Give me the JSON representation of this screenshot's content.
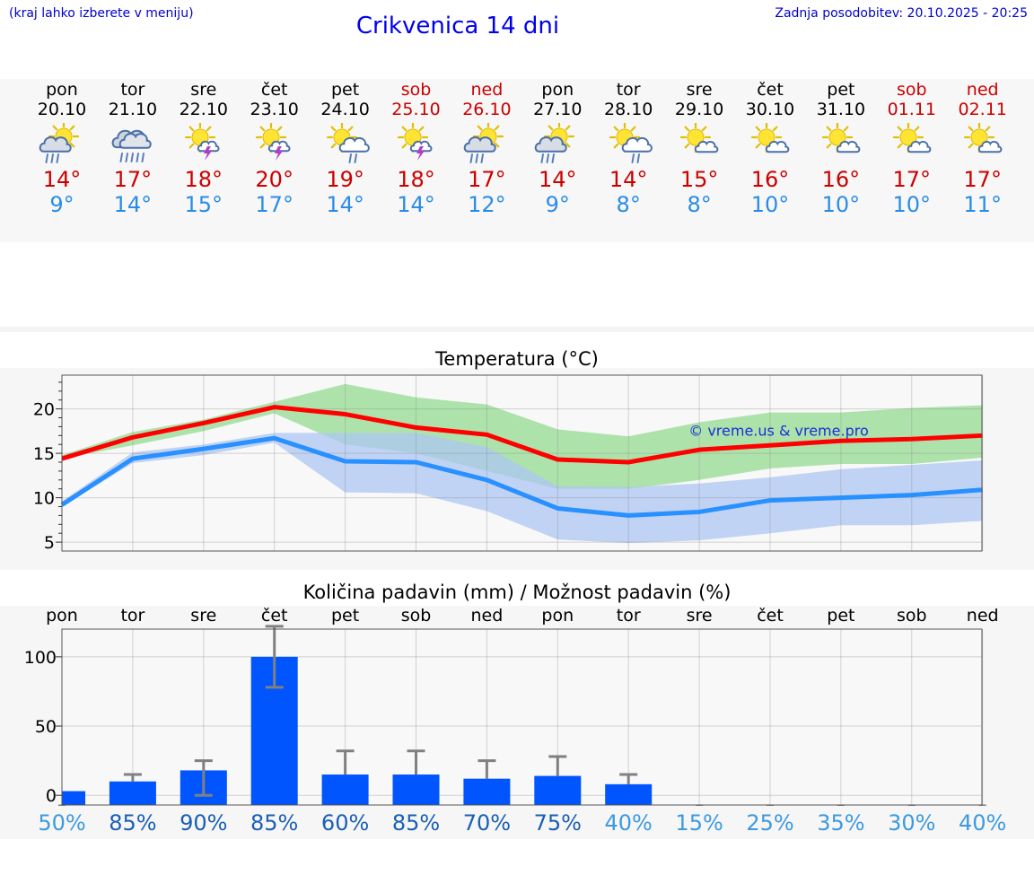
{
  "header": {
    "hint": "(kraj lahko izberete v meniju)",
    "title": "Crikvenica 14 dni",
    "updated": "Zadnja posodobitev: 20.10.2025 - 20:25"
  },
  "days": [
    {
      "name": "pon",
      "date": "20.10",
      "weekend": false,
      "icon": "sun-cloud-rain-icon",
      "tmax": "14°",
      "tmin": "9°"
    },
    {
      "name": "tor",
      "date": "21.10",
      "weekend": false,
      "icon": "cloud-heavy-rain-icon",
      "tmax": "17°",
      "tmin": "14°"
    },
    {
      "name": "sre",
      "date": "22.10",
      "weekend": false,
      "icon": "sun-thunder-icon",
      "tmax": "18°",
      "tmin": "15°"
    },
    {
      "name": "čet",
      "date": "23.10",
      "weekend": false,
      "icon": "sun-thunder-icon",
      "tmax": "20°",
      "tmin": "17°"
    },
    {
      "name": "pet",
      "date": "24.10",
      "weekend": false,
      "icon": "sun-cloud-light-rain-icon",
      "tmax": "19°",
      "tmin": "14°"
    },
    {
      "name": "sob",
      "date": "25.10",
      "weekend": true,
      "icon": "sun-thunder-icon",
      "tmax": "18°",
      "tmin": "14°"
    },
    {
      "name": "ned",
      "date": "26.10",
      "weekend": true,
      "icon": "sun-cloud-rain-icon",
      "tmax": "17°",
      "tmin": "12°"
    },
    {
      "name": "pon",
      "date": "27.10",
      "weekend": false,
      "icon": "sun-cloud-rain-icon",
      "tmax": "14°",
      "tmin": "9°"
    },
    {
      "name": "tor",
      "date": "28.10",
      "weekend": false,
      "icon": "sun-cloud-light-rain-icon",
      "tmax": "14°",
      "tmin": "8°"
    },
    {
      "name": "sre",
      "date": "29.10",
      "weekend": false,
      "icon": "sun-small-cloud-icon",
      "tmax": "15°",
      "tmin": "8°"
    },
    {
      "name": "čet",
      "date": "30.10",
      "weekend": false,
      "icon": "sun-small-cloud-icon",
      "tmax": "16°",
      "tmin": "10°"
    },
    {
      "name": "pet",
      "date": "31.10",
      "weekend": false,
      "icon": "sun-small-cloud-icon",
      "tmax": "16°",
      "tmin": "10°"
    },
    {
      "name": "sob",
      "date": "01.11",
      "weekend": true,
      "icon": "sun-small-cloud-icon",
      "tmax": "17°",
      "tmin": "10°"
    },
    {
      "name": "ned",
      "date": "02.11",
      "weekend": true,
      "icon": "sun-small-cloud-icon",
      "tmax": "17°",
      "tmin": "11°"
    }
  ],
  "colors": {
    "max_line": "#ff0000",
    "max_band": "#a9e2a6",
    "min_line": "#2990ff",
    "min_band": "#aec7f3",
    "bar": "#0055ff",
    "error": "#808080",
    "weekend": "#cc0000",
    "tmin_text": "#2a8ce8"
  },
  "chart_data": [
    {
      "type": "line",
      "title": "Temperatura (°C)",
      "watermark": "© vreme.us & vreme.pro",
      "categories": [
        "20.10",
        "21.10",
        "22.10",
        "23.10",
        "24.10",
        "25.10",
        "26.10",
        "27.10",
        "28.10",
        "29.10",
        "30.10",
        "31.10",
        "01.11",
        "02.11"
      ],
      "ylim": [
        4,
        23.8
      ],
      "yticks": [
        5,
        10,
        15,
        20
      ],
      "series": [
        {
          "role": "max",
          "values": [
            14.4,
            16.8,
            18.4,
            20.2,
            19.4,
            17.9,
            17.1,
            14.3,
            14.0,
            15.4,
            15.9,
            16.4,
            16.6,
            17.0
          ]
        },
        {
          "role": "max_low",
          "values": [
            14.4,
            15.9,
            17.5,
            19.5,
            16.0,
            15.0,
            13.0,
            11.0,
            11.0,
            12.0,
            13.3,
            13.8,
            13.8,
            14.5
          ]
        },
        {
          "role": "max_high",
          "values": [
            14.8,
            17.4,
            18.8,
            20.8,
            22.8,
            21.3,
            20.5,
            17.7,
            16.9,
            18.5,
            19.6,
            19.6,
            20.1,
            20.4
          ]
        },
        {
          "role": "min",
          "values": [
            9.2,
            14.4,
            15.5,
            16.7,
            14.1,
            14.0,
            12.0,
            8.8,
            8.0,
            8.4,
            9.7,
            10.0,
            10.3,
            10.9
          ]
        },
        {
          "role": "min_low",
          "values": [
            9.0,
            13.9,
            14.8,
            16.2,
            10.6,
            10.5,
            8.5,
            5.3,
            4.9,
            5.2,
            6.0,
            6.9,
            6.9,
            7.4
          ]
        },
        {
          "role": "min_high",
          "values": [
            9.6,
            15.1,
            16.0,
            17.3,
            17.3,
            17.3,
            15.7,
            11.3,
            11.2,
            11.6,
            12.3,
            13.2,
            13.7,
            14.2
          ]
        }
      ],
      "grid": true
    },
    {
      "type": "bar",
      "title": "Količina padavin (mm) / Možnost padavin (%)",
      "categories": [
        "pon",
        "tor",
        "sre",
        "čet",
        "pet",
        "sob",
        "ned",
        "pon",
        "tor",
        "sre",
        "čet",
        "pet",
        "sob",
        "ned"
      ],
      "ylim": [
        -7,
        120
      ],
      "yticks": [
        0,
        50,
        100
      ],
      "values": [
        3,
        10,
        18,
        100,
        15,
        15,
        12,
        14,
        8,
        0,
        0,
        0,
        0,
        0
      ],
      "error_low": [
        null,
        null,
        0,
        78,
        null,
        null,
        null,
        null,
        null,
        null,
        null,
        null,
        null,
        null
      ],
      "error_high": [
        0,
        15,
        25,
        122,
        32,
        32,
        25,
        28,
        15,
        0,
        0,
        0,
        0,
        0
      ],
      "probabilities": [
        "50%",
        "85%",
        "90%",
        "85%",
        "60%",
        "85%",
        "70%",
        "75%",
        "40%",
        "15%",
        "25%",
        "35%",
        "30%",
        "40%"
      ],
      "probability_colors": [
        "#3d9ae0",
        "#1a5fb4",
        "#1a5fb4",
        "#1a5fb4",
        "#1a5fb4",
        "#1a5fb4",
        "#1a5fb4",
        "#1a5fb4",
        "#3d9ae0",
        "#3d9ae0",
        "#3d9ae0",
        "#3d9ae0",
        "#3d9ae0",
        "#3d9ae0"
      ],
      "grid": true
    }
  ]
}
